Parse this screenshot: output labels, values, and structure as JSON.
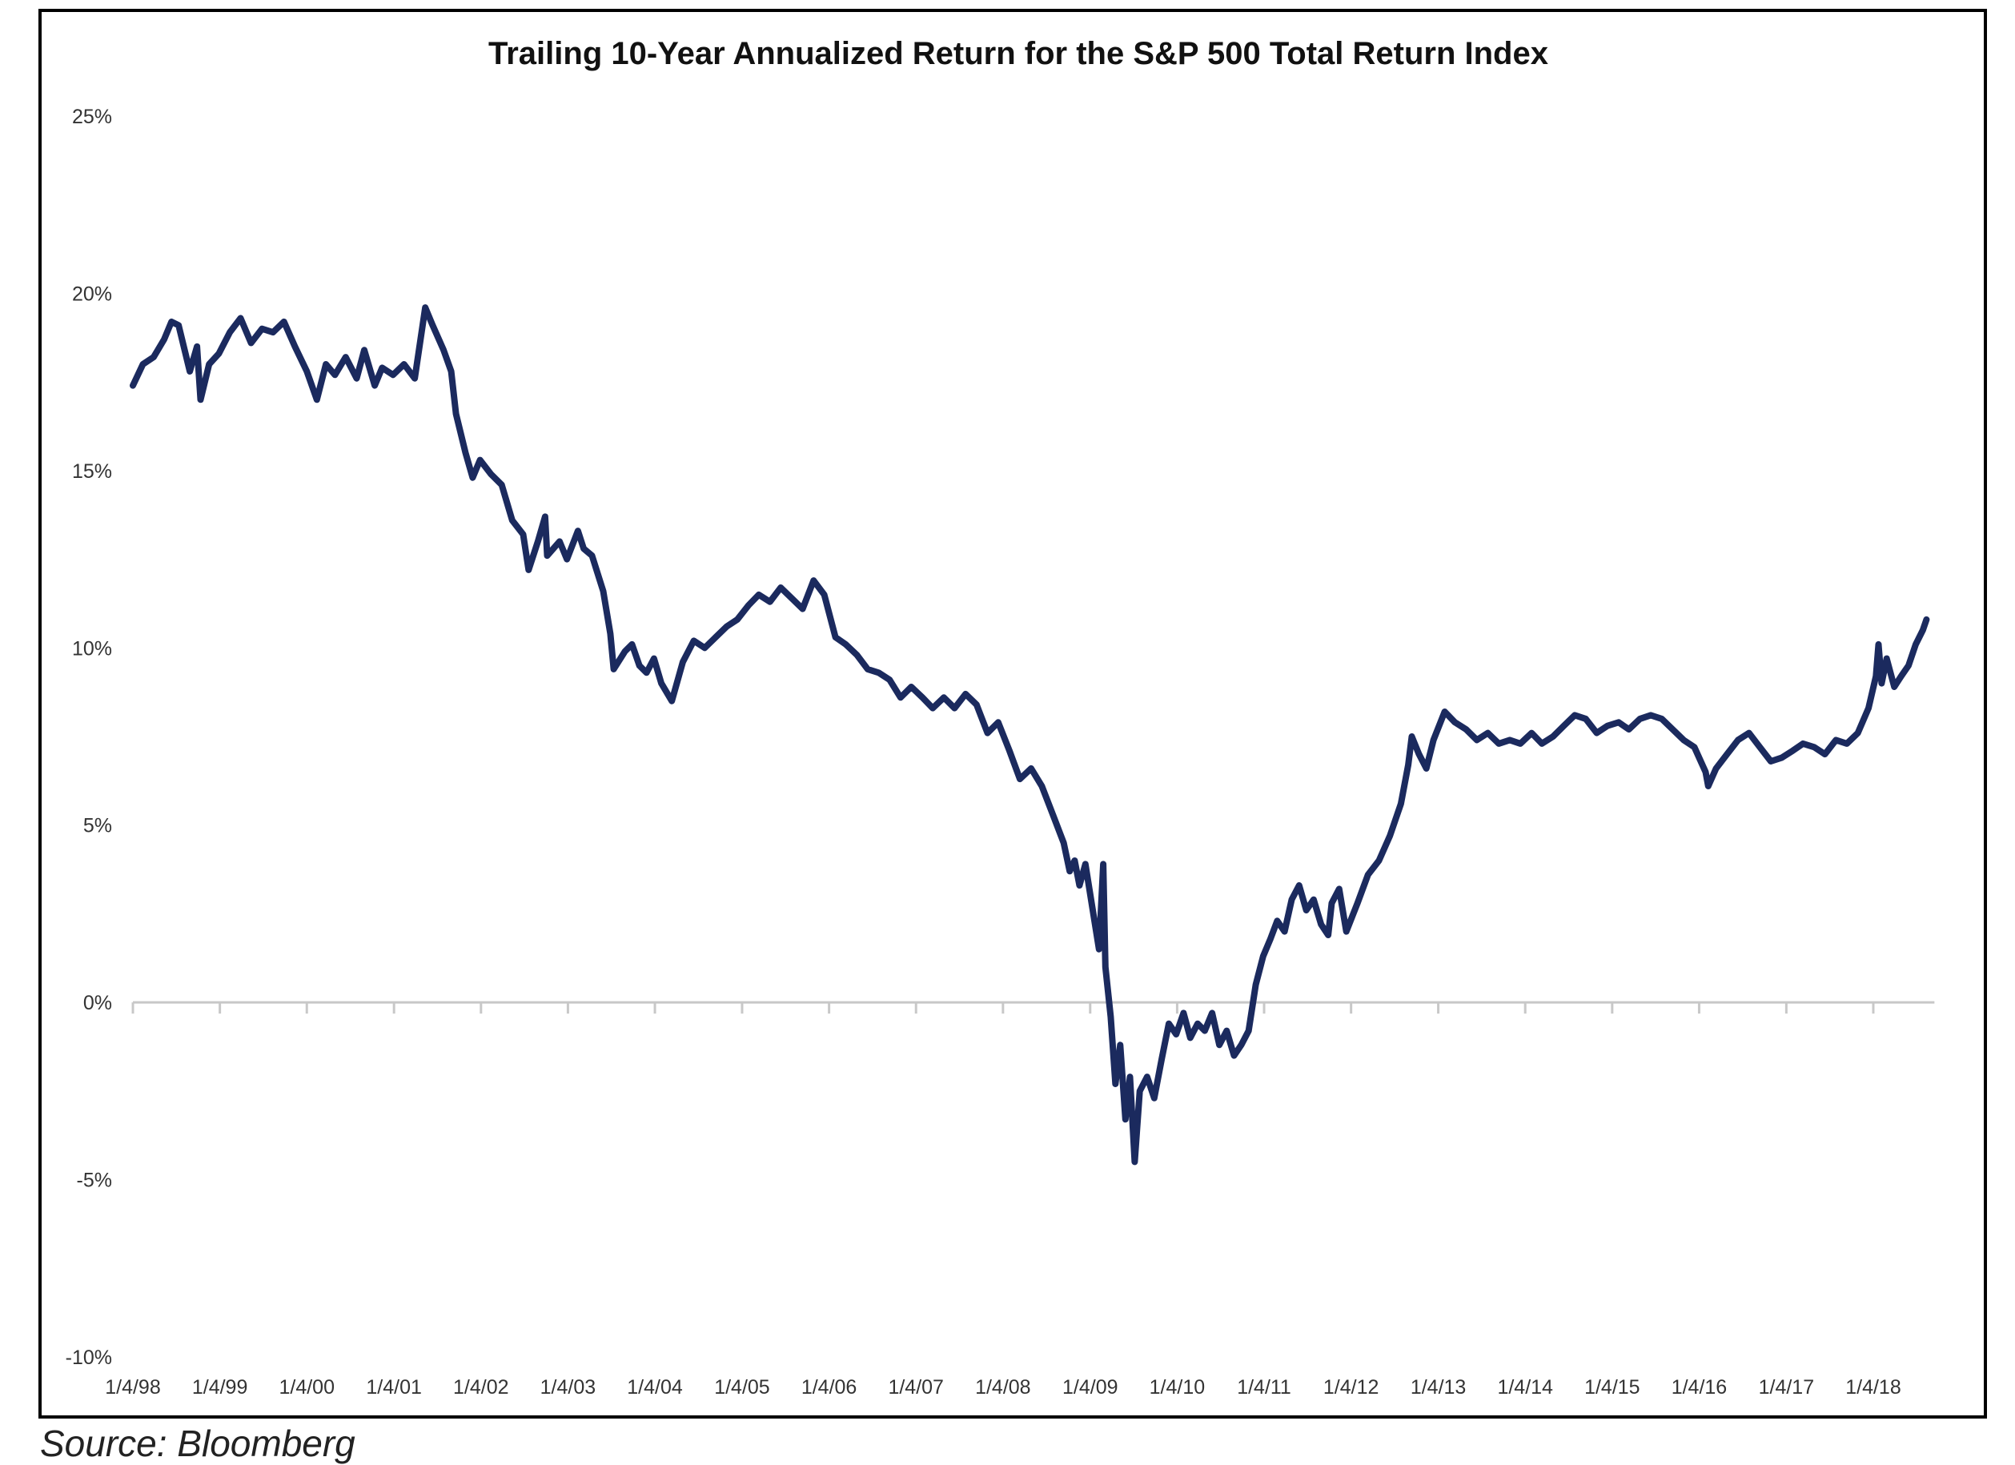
{
  "chart_data": {
    "type": "line",
    "title": "Trailing 10-Year  Annualized Return for the S&P 500 Total Return Index",
    "xlabel": "",
    "ylabel": "",
    "ylim": [
      -10,
      25
    ],
    "yticks": [
      -10,
      -5,
      0,
      5,
      10,
      15,
      20,
      25
    ],
    "ytick_labels": [
      "-10%",
      "-5%",
      "0%",
      "5%",
      "10%",
      "15%",
      "20%",
      "25%"
    ],
    "xlim": [
      "1998-01-04",
      "2018-08-15"
    ],
    "xticks": [
      "1998-01-04",
      "1999-01-04",
      "2000-01-04",
      "2001-01-04",
      "2002-01-04",
      "2003-01-04",
      "2004-01-04",
      "2005-01-04",
      "2006-01-04",
      "2007-01-04",
      "2008-01-04",
      "2009-01-04",
      "2010-01-04",
      "2011-01-04",
      "2012-01-04",
      "2013-01-04",
      "2014-01-04",
      "2015-01-04",
      "2016-01-04",
      "2017-01-04",
      "2018-01-04"
    ],
    "xtick_labels": [
      "1/4/98",
      "1/4/99",
      "1/4/00",
      "1/4/01",
      "1/4/02",
      "1/4/03",
      "1/4/04",
      "1/4/05",
      "1/4/06",
      "1/4/07",
      "1/4/08",
      "1/4/09",
      "1/4/10",
      "1/4/11",
      "1/4/12",
      "1/4/13",
      "1/4/14",
      "1/4/15",
      "1/4/16",
      "1/4/17",
      "1/4/18"
    ],
    "grid": false,
    "legend": "none",
    "series": [
      {
        "color": "#1b2a5e",
        "points": [
          [
            "1998-01-04",
            17.4
          ],
          [
            "1998-02-15",
            18.0
          ],
          [
            "1998-04-01",
            18.2
          ],
          [
            "1998-05-15",
            18.7
          ],
          [
            "1998-06-15",
            19.2
          ],
          [
            "1998-07-15",
            19.1
          ],
          [
            "1998-08-31",
            17.8
          ],
          [
            "1998-09-30",
            18.5
          ],
          [
            "1998-10-15",
            17.0
          ],
          [
            "1998-11-20",
            18.0
          ],
          [
            "1998-12-31",
            18.3
          ],
          [
            "1999-02-15",
            18.9
          ],
          [
            "1999-04-01",
            19.3
          ],
          [
            "1999-05-15",
            18.6
          ],
          [
            "1999-06-30",
            19.0
          ],
          [
            "1999-08-15",
            18.9
          ],
          [
            "1999-09-30",
            19.2
          ],
          [
            "1999-11-15",
            18.5
          ],
          [
            "2000-01-04",
            17.8
          ],
          [
            "2000-02-15",
            17.0
          ],
          [
            "2000-03-24",
            18.0
          ],
          [
            "2000-05-01",
            17.7
          ],
          [
            "2000-06-15",
            18.2
          ],
          [
            "2000-07-31",
            17.6
          ],
          [
            "2000-09-01",
            18.4
          ],
          [
            "2000-10-15",
            17.4
          ],
          [
            "2000-11-15",
            17.9
          ],
          [
            "2000-12-31",
            17.7
          ],
          [
            "2001-02-15",
            18.0
          ],
          [
            "2001-04-01",
            17.6
          ],
          [
            "2001-05-15",
            19.6
          ],
          [
            "2001-06-15",
            19.1
          ],
          [
            "2001-07-31",
            18.4
          ],
          [
            "2001-09-01",
            17.8
          ],
          [
            "2001-09-21",
            16.6
          ],
          [
            "2001-10-31",
            15.5
          ],
          [
            "2001-11-30",
            14.8
          ],
          [
            "2001-12-31",
            15.3
          ],
          [
            "2002-02-15",
            14.9
          ],
          [
            "2002-04-01",
            14.6
          ],
          [
            "2002-05-15",
            13.6
          ],
          [
            "2002-06-30",
            13.2
          ],
          [
            "2002-07-23",
            12.2
          ],
          [
            "2002-08-31",
            13.0
          ],
          [
            "2002-09-30",
            13.7
          ],
          [
            "2002-10-09",
            12.6
          ],
          [
            "2002-11-30",
            13.0
          ],
          [
            "2002-12-31",
            12.5
          ],
          [
            "2003-02-15",
            13.3
          ],
          [
            "2003-03-11",
            12.8
          ],
          [
            "2003-04-15",
            12.6
          ],
          [
            "2003-06-01",
            11.6
          ],
          [
            "2003-07-01",
            10.4
          ],
          [
            "2003-07-15",
            9.4
          ],
          [
            "2003-08-31",
            9.9
          ],
          [
            "2003-09-30",
            10.1
          ],
          [
            "2003-10-31",
            9.5
          ],
          [
            "2003-11-30",
            9.3
          ],
          [
            "2003-12-31",
            9.7
          ],
          [
            "2004-01-31",
            9.0
          ],
          [
            "2004-03-15",
            8.5
          ],
          [
            "2004-04-30",
            9.6
          ],
          [
            "2004-06-15",
            10.2
          ],
          [
            "2004-07-31",
            10.0
          ],
          [
            "2004-09-15",
            10.3
          ],
          [
            "2004-10-31",
            10.6
          ],
          [
            "2004-12-15",
            10.8
          ],
          [
            "2005-01-31",
            11.2
          ],
          [
            "2005-03-15",
            11.5
          ],
          [
            "2005-05-01",
            11.3
          ],
          [
            "2005-06-15",
            11.7
          ],
          [
            "2005-07-31",
            11.4
          ],
          [
            "2005-09-15",
            11.1
          ],
          [
            "2005-10-31",
            11.9
          ],
          [
            "2005-12-15",
            11.5
          ],
          [
            "2006-01-31",
            10.3
          ],
          [
            "2006-03-15",
            10.1
          ],
          [
            "2006-05-01",
            9.8
          ],
          [
            "2006-06-15",
            9.4
          ],
          [
            "2006-07-31",
            9.3
          ],
          [
            "2006-09-15",
            9.1
          ],
          [
            "2006-10-31",
            8.6
          ],
          [
            "2006-12-15",
            8.9
          ],
          [
            "2007-01-31",
            8.6
          ],
          [
            "2007-03-15",
            8.3
          ],
          [
            "2007-05-01",
            8.6
          ],
          [
            "2007-06-15",
            8.3
          ],
          [
            "2007-07-31",
            8.7
          ],
          [
            "2007-09-15",
            8.4
          ],
          [
            "2007-10-31",
            7.6
          ],
          [
            "2007-12-15",
            7.9
          ],
          [
            "2008-01-31",
            7.1
          ],
          [
            "2008-03-15",
            6.3
          ],
          [
            "2008-05-01",
            6.6
          ],
          [
            "2008-06-15",
            6.1
          ],
          [
            "2008-07-31",
            5.3
          ],
          [
            "2008-09-15",
            4.5
          ],
          [
            "2008-10-10",
            3.7
          ],
          [
            "2008-10-31",
            4.0
          ],
          [
            "2008-11-20",
            3.3
          ],
          [
            "2008-12-15",
            3.9
          ],
          [
            "2009-01-15",
            2.6
          ],
          [
            "2009-02-10",
            1.5
          ],
          [
            "2009-02-28",
            3.9
          ],
          [
            "2009-03-09",
            1.0
          ],
          [
            "2009-03-31",
            -0.4
          ],
          [
            "2009-04-20",
            -2.3
          ],
          [
            "2009-05-10",
            -1.2
          ],
          [
            "2009-06-01",
            -3.3
          ],
          [
            "2009-06-20",
            -2.1
          ],
          [
            "2009-07-10",
            -4.5
          ],
          [
            "2009-07-31",
            -2.5
          ],
          [
            "2009-08-31",
            -2.1
          ],
          [
            "2009-09-30",
            -2.7
          ],
          [
            "2009-10-31",
            -1.6
          ],
          [
            "2009-11-30",
            -0.6
          ],
          [
            "2009-12-31",
            -0.9
          ],
          [
            "2010-01-31",
            -0.3
          ],
          [
            "2010-02-28",
            -1.0
          ],
          [
            "2010-03-31",
            -0.6
          ],
          [
            "2010-04-30",
            -0.8
          ],
          [
            "2010-05-31",
            -0.3
          ],
          [
            "2010-06-30",
            -1.2
          ],
          [
            "2010-07-31",
            -0.8
          ],
          [
            "2010-08-31",
            -1.5
          ],
          [
            "2010-09-30",
            -1.2
          ],
          [
            "2010-10-31",
            -0.8
          ],
          [
            "2010-11-30",
            0.5
          ],
          [
            "2010-12-31",
            1.3
          ],
          [
            "2011-01-31",
            1.8
          ],
          [
            "2011-02-28",
            2.3
          ],
          [
            "2011-03-31",
            2.0
          ],
          [
            "2011-04-30",
            2.9
          ],
          [
            "2011-05-31",
            3.3
          ],
          [
            "2011-06-30",
            2.6
          ],
          [
            "2011-07-31",
            2.9
          ],
          [
            "2011-08-31",
            2.2
          ],
          [
            "2011-09-30",
            1.9
          ],
          [
            "2011-10-15",
            2.8
          ],
          [
            "2011-11-15",
            3.2
          ],
          [
            "2011-12-15",
            2.0
          ],
          [
            "2012-01-31",
            2.8
          ],
          [
            "2012-03-15",
            3.6
          ],
          [
            "2012-04-30",
            4.0
          ],
          [
            "2012-06-15",
            4.7
          ],
          [
            "2012-07-31",
            5.6
          ],
          [
            "2012-08-31",
            6.7
          ],
          [
            "2012-09-15",
            7.5
          ],
          [
            "2012-10-15",
            7.0
          ],
          [
            "2012-11-15",
            6.6
          ],
          [
            "2012-12-15",
            7.4
          ],
          [
            "2013-01-31",
            8.2
          ],
          [
            "2013-03-15",
            7.9
          ],
          [
            "2013-05-01",
            7.7
          ],
          [
            "2013-06-15",
            7.4
          ],
          [
            "2013-07-31",
            7.6
          ],
          [
            "2013-09-15",
            7.3
          ],
          [
            "2013-10-31",
            7.4
          ],
          [
            "2013-12-15",
            7.3
          ],
          [
            "2014-01-31",
            7.6
          ],
          [
            "2014-03-15",
            7.3
          ],
          [
            "2014-05-01",
            7.5
          ],
          [
            "2014-06-15",
            7.8
          ],
          [
            "2014-07-31",
            8.1
          ],
          [
            "2014-09-15",
            8.0
          ],
          [
            "2014-10-31",
            7.6
          ],
          [
            "2014-12-15",
            7.8
          ],
          [
            "2015-01-31",
            7.9
          ],
          [
            "2015-03-15",
            7.7
          ],
          [
            "2015-05-01",
            8.0
          ],
          [
            "2015-06-15",
            8.1
          ],
          [
            "2015-07-31",
            8.0
          ],
          [
            "2015-09-15",
            7.7
          ],
          [
            "2015-10-31",
            7.4
          ],
          [
            "2015-12-15",
            7.2
          ],
          [
            "2016-01-31",
            6.5
          ],
          [
            "2016-02-11",
            6.1
          ],
          [
            "2016-03-15",
            6.6
          ],
          [
            "2016-04-30",
            7.0
          ],
          [
            "2016-06-15",
            7.4
          ],
          [
            "2016-07-31",
            7.6
          ],
          [
            "2016-09-15",
            7.2
          ],
          [
            "2016-10-31",
            6.8
          ],
          [
            "2016-12-15",
            6.9
          ],
          [
            "2017-01-31",
            7.1
          ],
          [
            "2017-03-15",
            7.3
          ],
          [
            "2017-05-01",
            7.2
          ],
          [
            "2017-06-15",
            7.0
          ],
          [
            "2017-07-31",
            7.4
          ],
          [
            "2017-09-15",
            7.3
          ],
          [
            "2017-10-31",
            7.6
          ],
          [
            "2017-12-15",
            8.3
          ],
          [
            "2018-01-15",
            9.2
          ],
          [
            "2018-01-26",
            10.1
          ],
          [
            "2018-02-08",
            9.0
          ],
          [
            "2018-03-01",
            9.7
          ],
          [
            "2018-04-02",
            8.9
          ],
          [
            "2018-05-01",
            9.2
          ],
          [
            "2018-06-01",
            9.5
          ],
          [
            "2018-07-01",
            10.1
          ],
          [
            "2018-07-31",
            10.5
          ],
          [
            "2018-08-15",
            10.8
          ]
        ]
      }
    ]
  },
  "source": "Source: Bloomberg"
}
